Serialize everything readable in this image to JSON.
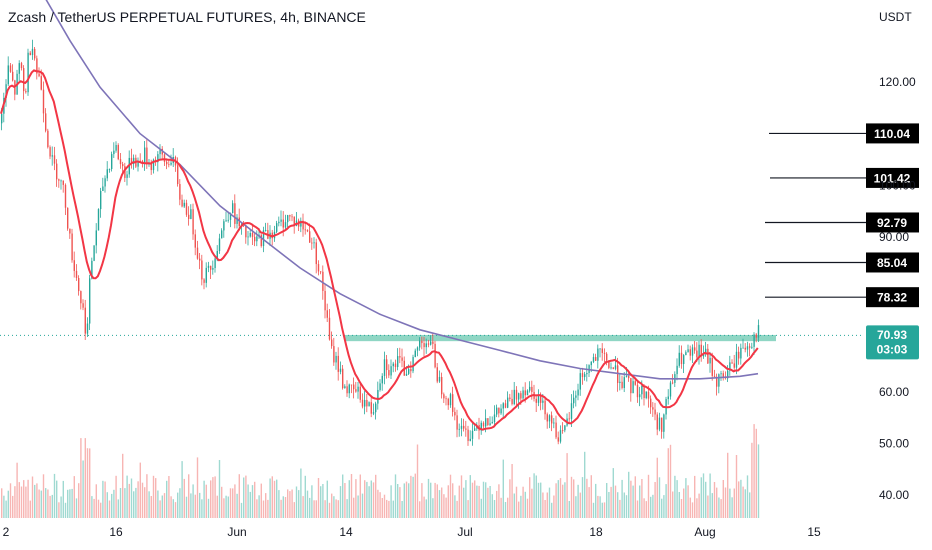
{
  "header": {
    "title": "Zcash / TetherUS PERPETUAL FUTURES, 4h, BINANCE",
    "currency": "USDT"
  },
  "chart_data": {
    "type": "candlestick",
    "title": "Zcash / TetherUS PERPETUAL FUTURES, 4h, BINANCE",
    "ylabel": "USDT",
    "ylim": [
      35,
      132
    ],
    "y_ticks": [
      "120.00",
      "100.00",
      "90.00",
      "60.00",
      "50.00",
      "40.00"
    ],
    "x_ticks": [
      "2",
      "16",
      "Jun",
      "14",
      "Jul",
      "18",
      "Aug",
      "15"
    ],
    "last_price": "70.93",
    "countdown": "03:03",
    "horizontal_levels": [
      "110.04",
      "101.42",
      "92.79",
      "85.04",
      "78.32"
    ],
    "support_zone": [
      69.8,
      71.0
    ],
    "last_price_line": 70.93,
    "price_path": [
      [
        0,
        112
      ],
      [
        8,
        123
      ],
      [
        14,
        118
      ],
      [
        20,
        124
      ],
      [
        24,
        116
      ],
      [
        28,
        126
      ],
      [
        32,
        128
      ],
      [
        36,
        122
      ],
      [
        40,
        120
      ],
      [
        46,
        110
      ],
      [
        52,
        104
      ],
      [
        58,
        102
      ],
      [
        64,
        98
      ],
      [
        70,
        88
      ],
      [
        76,
        82
      ],
      [
        80,
        78
      ],
      [
        84,
        74
      ],
      [
        86,
        70
      ],
      [
        90,
        84
      ],
      [
        96,
        92
      ],
      [
        102,
        100
      ],
      [
        108,
        104
      ],
      [
        114,
        108
      ],
      [
        120,
        104
      ],
      [
        126,
        102
      ],
      [
        132,
        106
      ],
      [
        138,
        104
      ],
      [
        144,
        106
      ],
      [
        150,
        104
      ],
      [
        158,
        106
      ],
      [
        166,
        104
      ],
      [
        172,
        106
      ],
      [
        178,
        98
      ],
      [
        184,
        96
      ],
      [
        190,
        94
      ],
      [
        196,
        88
      ],
      [
        202,
        82
      ],
      [
        210,
        84
      ],
      [
        216,
        88
      ],
      [
        222,
        92
      ],
      [
        230,
        96
      ],
      [
        238,
        92
      ],
      [
        246,
        90
      ],
      [
        254,
        89
      ],
      [
        262,
        90
      ],
      [
        270,
        91
      ],
      [
        278,
        92
      ],
      [
        286,
        94
      ],
      [
        294,
        93
      ],
      [
        302,
        92
      ],
      [
        310,
        90
      ],
      [
        316,
        86
      ],
      [
        322,
        80
      ],
      [
        326,
        74
      ],
      [
        330,
        68
      ],
      [
        336,
        66
      ],
      [
        342,
        62
      ],
      [
        348,
        60
      ],
      [
        356,
        60
      ],
      [
        364,
        58
      ],
      [
        372,
        56
      ],
      [
        378,
        62
      ],
      [
        384,
        66
      ],
      [
        390,
        64
      ],
      [
        396,
        66
      ],
      [
        404,
        64
      ],
      [
        412,
        66
      ],
      [
        420,
        70
      ],
      [
        426,
        70
      ],
      [
        432,
        68
      ],
      [
        438,
        62
      ],
      [
        444,
        60
      ],
      [
        450,
        58
      ],
      [
        456,
        54
      ],
      [
        462,
        52
      ],
      [
        470,
        52
      ],
      [
        478,
        54
      ],
      [
        486,
        55
      ],
      [
        494,
        55
      ],
      [
        502,
        57
      ],
      [
        510,
        58
      ],
      [
        518,
        60
      ],
      [
        526,
        61
      ],
      [
        534,
        60
      ],
      [
        542,
        57
      ],
      [
        550,
        55
      ],
      [
        556,
        52
      ],
      [
        562,
        51
      ],
      [
        568,
        55
      ],
      [
        574,
        59
      ],
      [
        580,
        63
      ],
      [
        586,
        64
      ],
      [
        592,
        66
      ],
      [
        598,
        67
      ],
      [
        606,
        66
      ],
      [
        614,
        64
      ],
      [
        622,
        62
      ],
      [
        630,
        61
      ],
      [
        638,
        60
      ],
      [
        646,
        60
      ],
      [
        654,
        55
      ],
      [
        660,
        53
      ],
      [
        666,
        58
      ],
      [
        672,
        62
      ],
      [
        678,
        66
      ],
      [
        686,
        67
      ],
      [
        694,
        67
      ],
      [
        702,
        68
      ],
      [
        710,
        65
      ],
      [
        716,
        62
      ],
      [
        722,
        63
      ],
      [
        728,
        64
      ],
      [
        734,
        66
      ],
      [
        740,
        68
      ],
      [
        746,
        69
      ],
      [
        752,
        70
      ],
      [
        756,
        72
      ],
      [
        760,
        70.93
      ]
    ]
  },
  "colors": {
    "up": "#26a69a",
    "down": "#ef5350",
    "ma_fast": "#f23645",
    "ma_slow": "#7e74b8",
    "support_zone": "#8fd6c4",
    "vol_up": "#9fd9d1",
    "vol_down": "#f7b5b3"
  }
}
